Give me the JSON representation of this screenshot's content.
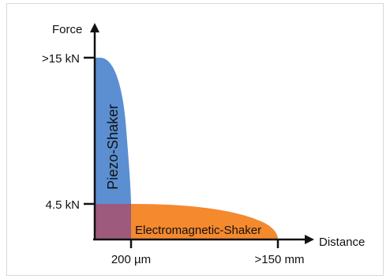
{
  "axes": {
    "y_label": "Force",
    "x_label": "Distance"
  },
  "y_ticks": [
    ">15 kN",
    "4.5 kN"
  ],
  "x_ticks": [
    "200 µm",
    ">150 mm"
  ],
  "regions": {
    "piezo": {
      "label": "Piezo-Shaker",
      "color": "#5b8fd1"
    },
    "electromagnetic": {
      "label": "Electromagnetic-Shaker",
      "color": "#f5892e"
    },
    "overlap": {
      "color": "#9e5a7c"
    }
  },
  "colors": {
    "axis": "#111111",
    "frame": "#d9d9d9"
  }
}
